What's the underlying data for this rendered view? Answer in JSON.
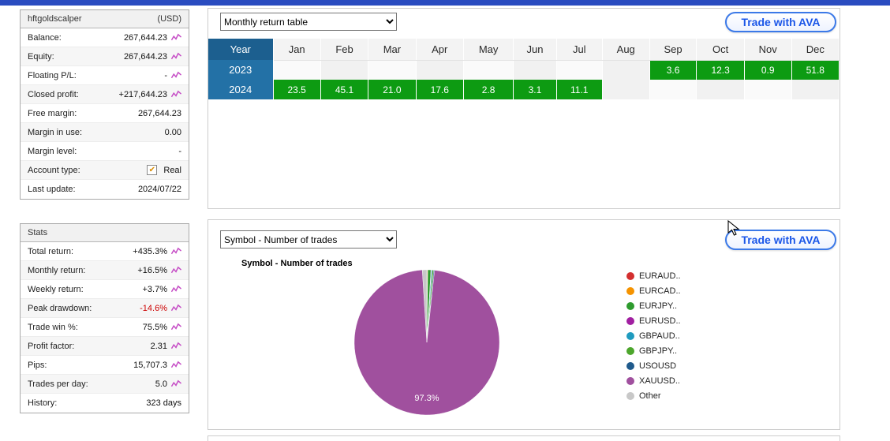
{
  "account_panel": {
    "title": "hftgoldscalper",
    "currency": "(USD)",
    "rows": [
      {
        "label": "Balance:",
        "value": "267,644.23",
        "icon": true,
        "checkbox": false
      },
      {
        "label": "Equity:",
        "value": "267,644.23",
        "icon": true,
        "checkbox": false
      },
      {
        "label": "Floating P/L:",
        "value": "-",
        "icon": true,
        "checkbox": false
      },
      {
        "label": "Closed profit:",
        "value": "+217,644.23",
        "icon": true,
        "checkbox": false
      },
      {
        "label": "Free margin:",
        "value": "267,644.23",
        "icon": false,
        "checkbox": false
      },
      {
        "label": "Margin in use:",
        "value": "0.00",
        "icon": false,
        "checkbox": false
      },
      {
        "label": "Margin level:",
        "value": "-",
        "icon": false,
        "checkbox": false
      },
      {
        "label": "Account type:",
        "value": "Real",
        "icon": false,
        "checkbox": true
      },
      {
        "label": "Last update:",
        "value": "2024/07/22",
        "icon": false,
        "checkbox": false
      }
    ]
  },
  "stats_panel": {
    "title": "Stats",
    "rows": [
      {
        "label": "Total return:",
        "value": "+435.3%",
        "icon": true
      },
      {
        "label": "Monthly return:",
        "value": "+16.5%",
        "icon": true
      },
      {
        "label": "Weekly return:",
        "value": "+3.7%",
        "icon": true
      },
      {
        "label": "Peak drawdown:",
        "value": "-14.6%",
        "icon": true,
        "value_color": "#cc0000"
      },
      {
        "label": "Trade win %:",
        "value": "75.5%",
        "icon": true
      },
      {
        "label": "Profit factor:",
        "value": "2.31",
        "icon": true
      },
      {
        "label": "Pips:",
        "value": "15,707.3",
        "icon": true
      },
      {
        "label": "Trades per day:",
        "value": "5.0",
        "icon": true
      },
      {
        "label": "History:",
        "value": "323 days",
        "icon": false
      }
    ]
  },
  "monthly_panel": {
    "dropdown_value": "Monthly return table",
    "button_label": "Trade with AVA"
  },
  "symbol_panel": {
    "dropdown_value": "Symbol - Number of trades",
    "button_label": "Trade with AVA",
    "chart_title": "Symbol - Number of trades"
  },
  "chart_data": [
    {
      "type": "table",
      "title": "Monthly return table",
      "columns": [
        "Year",
        "Jan",
        "Feb",
        "Mar",
        "Apr",
        "May",
        "Jun",
        "Jul",
        "Aug",
        "Sep",
        "Oct",
        "Nov",
        "Dec"
      ],
      "rows": [
        {
          "year": "2023",
          "values": [
            "",
            "",
            "",
            "",
            "",
            "",
            "",
            "",
            "3.6",
            "12.3",
            "0.9",
            "51.8"
          ]
        },
        {
          "year": "2024",
          "values": [
            "23.5",
            "45.1",
            "21.0",
            "17.6",
            "2.8",
            "3.1",
            "11.1",
            "",
            "",
            "",
            "",
            ""
          ]
        }
      ]
    },
    {
      "type": "pie",
      "title": "Symbol - Number of trades",
      "label": "97.3%",
      "label_slice": "XAUUSD..",
      "legend_position": "right",
      "slices": [
        {
          "label": "EURAUD..",
          "value": 0.1,
          "color": "#d32f2f"
        },
        {
          "label": "EURCAD..",
          "value": 0.1,
          "color": "#f59300"
        },
        {
          "label": "EURJPY..",
          "value": 0.7,
          "color": "#2e9b2e"
        },
        {
          "label": "EURUSD..",
          "value": 0.1,
          "color": "#a11fa1"
        },
        {
          "label": "GBPAUD..",
          "value": 0.2,
          "color": "#1f9bbf"
        },
        {
          "label": "GBPJPY..",
          "value": 0.3,
          "color": "#4ca62c"
        },
        {
          "label": "USOUSD",
          "value": 0.2,
          "color": "#1f5a8c"
        },
        {
          "label": "XAUUSD..",
          "value": 97.3,
          "color": "#a0509e"
        },
        {
          "label": "Other",
          "value": 1.0,
          "color": "#c8c8c8"
        }
      ]
    }
  ],
  "colors": {
    "topbar": "#2a4cc0",
    "positive_cell": "#0d9b12",
    "year_header": "#1c5f8f",
    "year_cell": "#2371a6",
    "button_blue": "#1a56e8",
    "drawdown_red": "#cc0000",
    "spark_pink": "#c54bc5"
  }
}
